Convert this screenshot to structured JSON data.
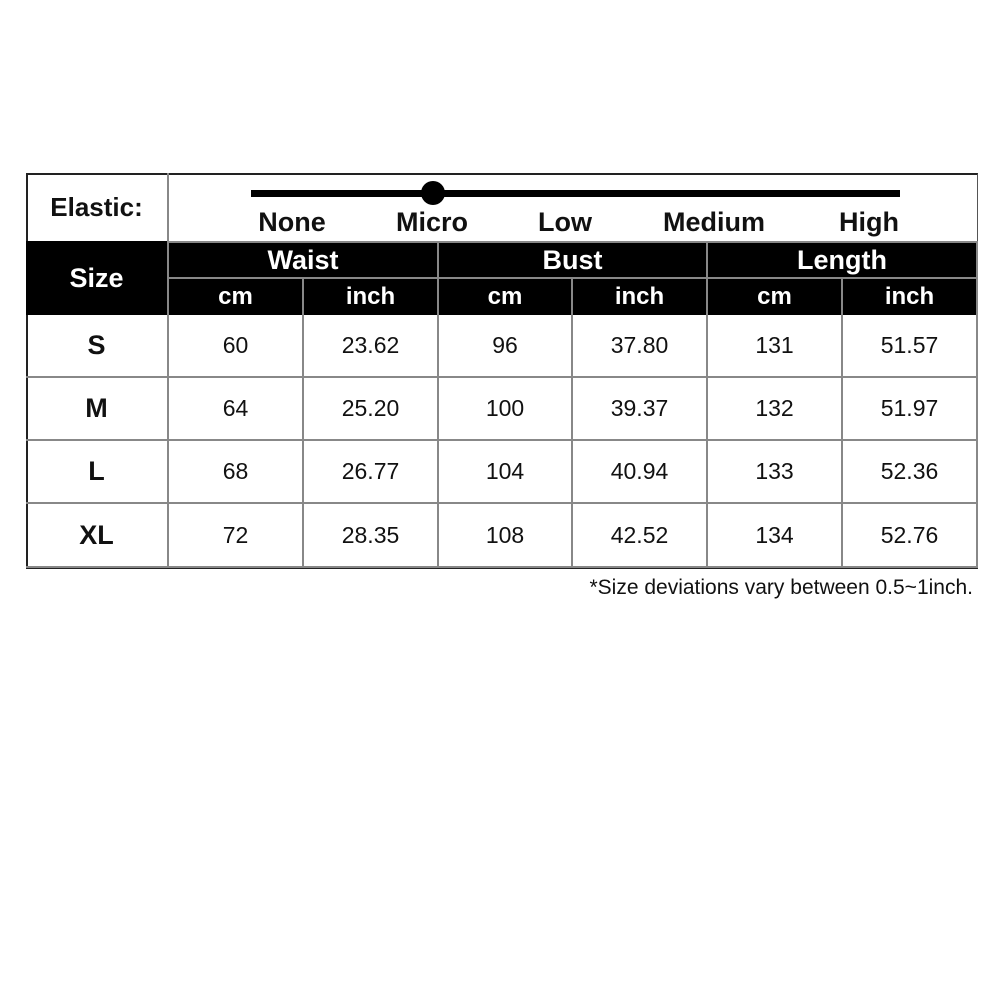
{
  "elastic": {
    "label": "Elastic:",
    "levels": [
      "None",
      "Micro",
      "Low",
      "Medium",
      "High"
    ],
    "selected": "Micro"
  },
  "header": {
    "size": "Size",
    "groups": [
      "Waist",
      "Bust",
      "Length"
    ],
    "units": [
      "cm",
      "inch",
      "cm",
      "inch",
      "cm",
      "inch"
    ]
  },
  "rows": [
    {
      "size": "S",
      "values": [
        "60",
        "23.62",
        "96",
        "37.80",
        "131",
        "51.57"
      ]
    },
    {
      "size": "M",
      "values": [
        "64",
        "25.20",
        "100",
        "39.37",
        "132",
        "51.97"
      ]
    },
    {
      "size": "L",
      "values": [
        "68",
        "26.77",
        "104",
        "40.94",
        "133",
        "52.36"
      ]
    },
    {
      "size": "XL",
      "values": [
        "72",
        "28.35",
        "108",
        "42.52",
        "134",
        "52.76"
      ]
    }
  ],
  "footnote": "*Size deviations vary between 0.5~1inch."
}
